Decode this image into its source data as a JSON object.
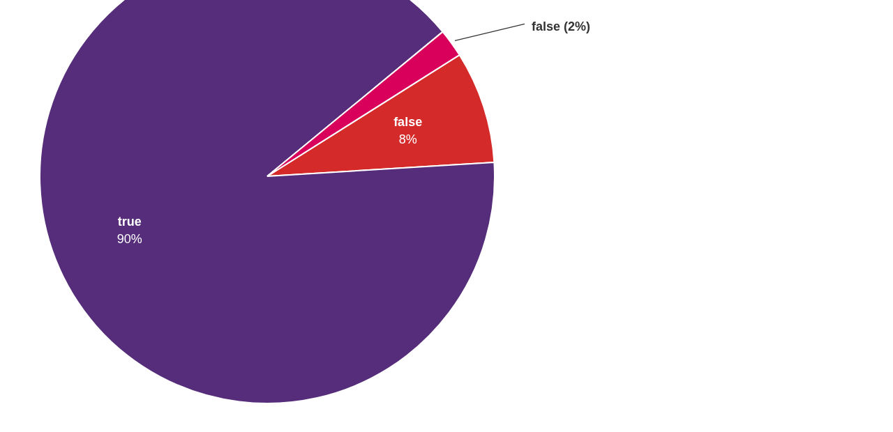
{
  "chart_data": {
    "type": "pie",
    "categories": [
      "false",
      "true",
      "false"
    ],
    "values": [
      8,
      90,
      2
    ],
    "colors": [
      "#d42a2a",
      "#552d7a",
      "#d9005b"
    ],
    "value_labels": [
      "8%",
      "90%",
      "(2%)"
    ],
    "legend": false
  }
}
